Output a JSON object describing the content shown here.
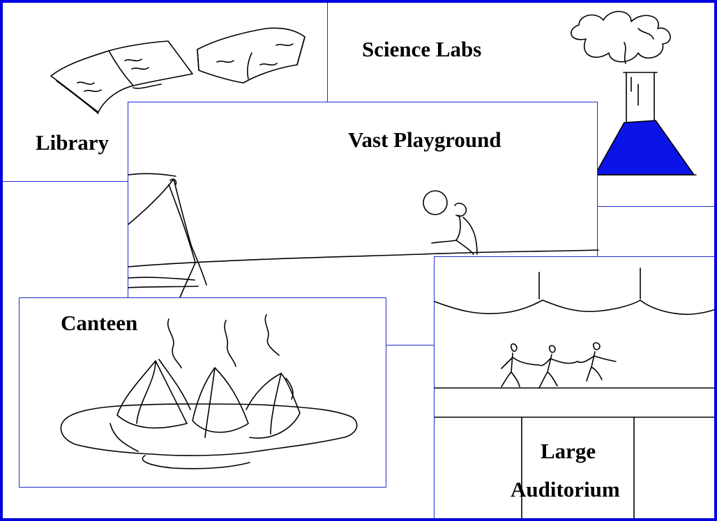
{
  "labels": {
    "science": "Science Labs",
    "library": "Library",
    "playground": "Vast Playground",
    "canteen": "Canteen",
    "auditorium_line1": "Large",
    "auditorium_line2": "Auditorium"
  },
  "colors": {
    "frame": "#0000dd",
    "panel_border": "#1f2bd0",
    "flask_liquid": "#0a14e6"
  }
}
